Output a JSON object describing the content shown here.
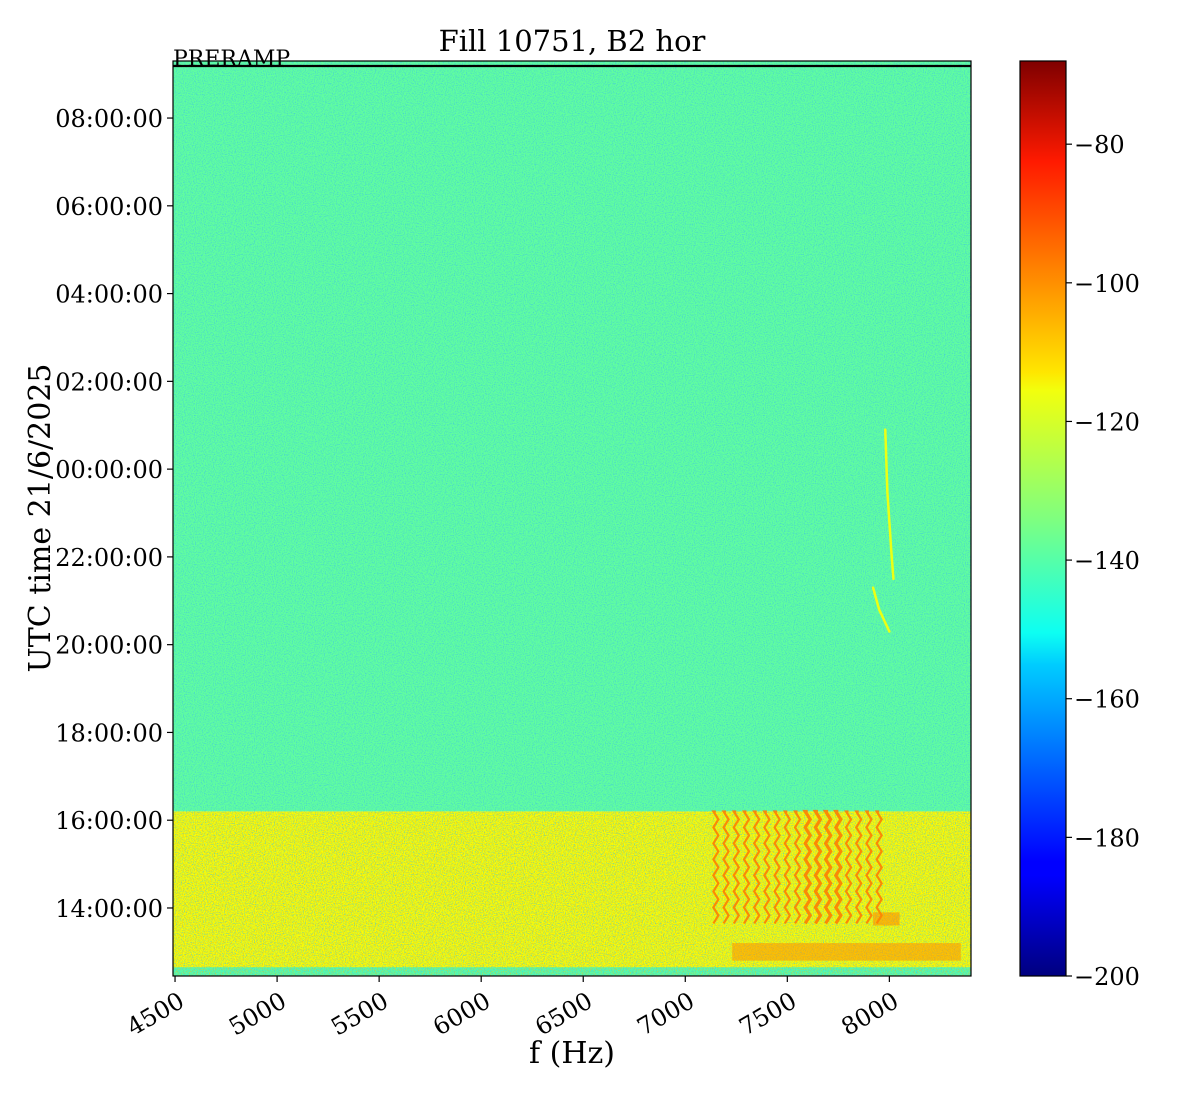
{
  "chart_data": {
    "type": "heatmap",
    "title": "Fill 10751, B2 hor",
    "annotation": "PRERAMP",
    "xlabel": "f (Hz)",
    "ylabel": "UTC time 21/6/2025",
    "xlim": [
      4490,
      8400
    ],
    "x_ticks": [
      4500,
      5000,
      5500,
      6000,
      6500,
      7000,
      7500,
      8000
    ],
    "y_ticks": [
      "14:00:00",
      "16:00:00",
      "18:00:00",
      "20:00:00",
      "22:00:00",
      "00:00:00",
      "02:00:00",
      "04:00:00",
      "06:00:00",
      "08:00:00"
    ],
    "y_tick_hours": [
      14,
      16,
      18,
      20,
      22,
      24,
      26,
      28,
      30,
      32
    ],
    "y_range_hours": [
      12.45,
      33.3
    ],
    "colorbar": {
      "colormap": "jet",
      "range": [
        -200,
        -68
      ],
      "ticks": [
        -80,
        -100,
        -120,
        -140,
        -160,
        -180,
        -200
      ],
      "tick_labels": [
        "−80",
        "−100",
        "−120",
        "−140",
        "−160",
        "−180",
        "−200"
      ]
    },
    "regions": [
      {
        "description": "quiet background",
        "t_start": 16.2,
        "t_end": 33.3,
        "level_dB": -138
      },
      {
        "description": "elevated band before ramp",
        "t_start": 12.45,
        "t_end": 16.2,
        "level_dB": -118
      },
      {
        "description": "line at start of fill",
        "t_start": 12.45,
        "t_end": 12.65,
        "level_dB": -140
      }
    ],
    "lines": [
      {
        "f_start": 7150,
        "f_end": 7950,
        "spacing_hz": 50,
        "t_start": 13.6,
        "t_end": 16.2,
        "level_dB": -100
      },
      {
        "f_start": 7230,
        "f_end": 8350,
        "t_start": 12.8,
        "t_end": 13.2,
        "level_dB": -103
      },
      {
        "f_start": 7920,
        "f_end": 8050,
        "t_start": 13.6,
        "t_end": 13.9,
        "level_dB": -102
      }
    ],
    "traces": [
      {
        "points": [
          [
            7920,
            21.3
          ],
          [
            7950,
            20.8
          ],
          [
            8000,
            20.3
          ]
        ],
        "level_dB": -120
      },
      {
        "points": [
          [
            7980,
            24.9
          ],
          [
            7990,
            23.5
          ],
          [
            8010,
            22.1
          ],
          [
            8020,
            21.5
          ]
        ],
        "level_dB": -120
      }
    ]
  }
}
